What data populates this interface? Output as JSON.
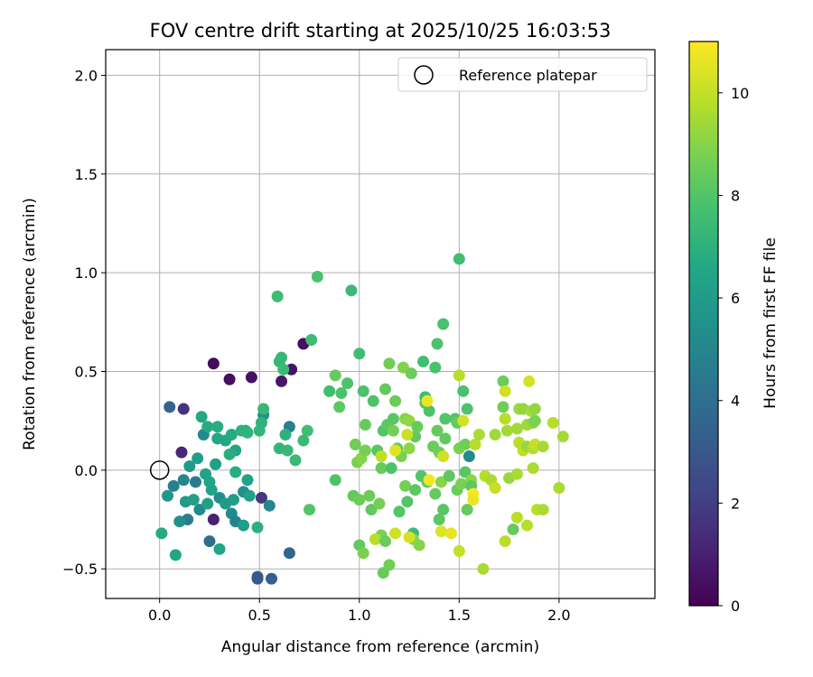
{
  "chart_data": {
    "type": "scatter",
    "title": "FOV centre drift starting at 2025/10/25 16:03:53",
    "xlabel": "Angular distance from reference (arcmin)",
    "ylabel": "Rotation from reference (arcmin)",
    "xlim": [
      -0.27,
      2.48
    ],
    "ylim": [
      -0.65,
      2.13
    ],
    "xticks": [
      0.0,
      0.5,
      1.0,
      1.5,
      2.0
    ],
    "xtick_labels": [
      "0.0",
      "0.5",
      "1.0",
      "1.5",
      "2.0"
    ],
    "yticks": [
      -0.5,
      0.0,
      0.5,
      1.0,
      1.5,
      2.0
    ],
    "ytick_labels": [
      "−0.5",
      "0.0",
      "0.5",
      "1.0",
      "1.5",
      "2.0"
    ],
    "grid": true,
    "legend": {
      "position": "top-right",
      "label": "Reference platepar"
    },
    "reference_point": {
      "x": 0.0,
      "y": 0.0
    },
    "colorbar": {
      "label": "Hours from first FF file",
      "range": [
        0,
        11
      ],
      "ticks": [
        0,
        2,
        4,
        6,
        8,
        10
      ],
      "tick_labels": [
        "0",
        "2",
        "4",
        "6",
        "8",
        "10"
      ],
      "colormap": "viridis"
    },
    "points": [
      {
        "x": 0.27,
        "y": 0.54,
        "hours": 0.3
      },
      {
        "x": 0.35,
        "y": 0.46,
        "hours": 0.4
      },
      {
        "x": 0.46,
        "y": 0.47,
        "hours": 0.5
      },
      {
        "x": 0.66,
        "y": 0.51,
        "hours": 0.6
      },
      {
        "x": 0.72,
        "y": 0.64,
        "hours": 0.4
      },
      {
        "x": 0.61,
        "y": 0.45,
        "hours": 0.7
      },
      {
        "x": 0.12,
        "y": 0.31,
        "hours": 1.6
      },
      {
        "x": 0.11,
        "y": 0.09,
        "hours": 1.2
      },
      {
        "x": 0.27,
        "y": -0.25,
        "hours": 1.0
      },
      {
        "x": 0.51,
        "y": -0.14,
        "hours": 1.8
      },
      {
        "x": 0.05,
        "y": 0.32,
        "hours": 3.5
      },
      {
        "x": 0.25,
        "y": -0.36,
        "hours": 4.0
      },
      {
        "x": 0.49,
        "y": -0.54,
        "hours": 3.2
      },
      {
        "x": 0.56,
        "y": -0.55,
        "hours": 3.4
      },
      {
        "x": 0.65,
        "y": -0.42,
        "hours": 3.6
      },
      {
        "x": 0.49,
        "y": -0.55,
        "hours": 3.0
      },
      {
        "x": 0.07,
        "y": -0.08,
        "hours": 4.8
      },
      {
        "x": 0.12,
        "y": -0.05,
        "hours": 5.0
      },
      {
        "x": 0.18,
        "y": -0.06,
        "hours": 4.5
      },
      {
        "x": 0.14,
        "y": -0.25,
        "hours": 4.6
      },
      {
        "x": 0.3,
        "y": -0.14,
        "hours": 5.3
      },
      {
        "x": 0.36,
        "y": -0.22,
        "hours": 5.2
      },
      {
        "x": 0.42,
        "y": -0.11,
        "hours": 5.4
      },
      {
        "x": 0.55,
        "y": -0.18,
        "hours": 5.0
      },
      {
        "x": 0.65,
        "y": 0.22,
        "hours": 4.7
      },
      {
        "x": 0.52,
        "y": 0.28,
        "hours": 5.5
      },
      {
        "x": 0.2,
        "y": -0.2,
        "hours": 5.2
      },
      {
        "x": 0.38,
        "y": -0.26,
        "hours": 4.9
      },
      {
        "x": 0.22,
        "y": 0.18,
        "hours": 5.1
      },
      {
        "x": 0.1,
        "y": -0.26,
        "hours": 5.4
      },
      {
        "x": 0.04,
        "y": -0.13,
        "hours": 5.8
      },
      {
        "x": 0.13,
        "y": -0.16,
        "hours": 6.0
      },
      {
        "x": 0.17,
        "y": -0.15,
        "hours": 6.2
      },
      {
        "x": 0.15,
        "y": 0.02,
        "hours": 6.0
      },
      {
        "x": 0.19,
        "y": 0.06,
        "hours": 6.1
      },
      {
        "x": 0.23,
        "y": -0.02,
        "hours": 6.3
      },
      {
        "x": 0.25,
        "y": -0.06,
        "hours": 6.4
      },
      {
        "x": 0.28,
        "y": 0.03,
        "hours": 6.2
      },
      {
        "x": 0.29,
        "y": 0.16,
        "hours": 6.5
      },
      {
        "x": 0.33,
        "y": 0.15,
        "hours": 6.6
      },
      {
        "x": 0.37,
        "y": -0.15,
        "hours": 6.1
      },
      {
        "x": 0.33,
        "y": -0.17,
        "hours": 6.0
      },
      {
        "x": 0.26,
        "y": -0.1,
        "hours": 6.3
      },
      {
        "x": 0.24,
        "y": -0.17,
        "hours": 6.2
      },
      {
        "x": 0.21,
        "y": 0.27,
        "hours": 6.6
      },
      {
        "x": 0.24,
        "y": 0.22,
        "hours": 6.7
      },
      {
        "x": 0.29,
        "y": 0.22,
        "hours": 6.8
      },
      {
        "x": 0.36,
        "y": 0.18,
        "hours": 6.7
      },
      {
        "x": 0.38,
        "y": 0.1,
        "hours": 6.4
      },
      {
        "x": 0.43,
        "y": 0.2,
        "hours": 6.6
      },
      {
        "x": 0.44,
        "y": -0.05,
        "hours": 6.3
      },
      {
        "x": 0.45,
        "y": -0.13,
        "hours": 6.2
      },
      {
        "x": 0.42,
        "y": -0.28,
        "hours": 6.1
      },
      {
        "x": 0.3,
        "y": -0.4,
        "hours": 6.5
      },
      {
        "x": 0.08,
        "y": -0.43,
        "hours": 6.6
      },
      {
        "x": 0.01,
        "y": -0.32,
        "hours": 6.7
      },
      {
        "x": 0.35,
        "y": 0.08,
        "hours": 6.9
      },
      {
        "x": 0.41,
        "y": 0.2,
        "hours": 7.0
      },
      {
        "x": 0.44,
        "y": 0.19,
        "hours": 7.1
      },
      {
        "x": 0.49,
        "y": -0.29,
        "hours": 7.0
      },
      {
        "x": 0.38,
        "y": -0.01,
        "hours": 6.8
      },
      {
        "x": 0.5,
        "y": 0.2,
        "hours": 7.2
      },
      {
        "x": 0.51,
        "y": 0.24,
        "hours": 7.1
      },
      {
        "x": 0.52,
        "y": 0.31,
        "hours": 7.3
      },
      {
        "x": 0.6,
        "y": 0.55,
        "hours": 7.2
      },
      {
        "x": 0.62,
        "y": 0.51,
        "hours": 7.4
      },
      {
        "x": 0.61,
        "y": 0.57,
        "hours": 7.3
      },
      {
        "x": 0.63,
        "y": 0.18,
        "hours": 7.0
      },
      {
        "x": 0.6,
        "y": 0.11,
        "hours": 7.2
      },
      {
        "x": 0.64,
        "y": 0.1,
        "hours": 7.3
      },
      {
        "x": 0.68,
        "y": 0.05,
        "hours": 7.4
      },
      {
        "x": 0.72,
        "y": 0.15,
        "hours": 7.4
      },
      {
        "x": 0.74,
        "y": 0.2,
        "hours": 7.6
      },
      {
        "x": 0.76,
        "y": 0.66,
        "hours": 7.5
      },
      {
        "x": 0.59,
        "y": 0.88,
        "hours": 7.5
      },
      {
        "x": 0.79,
        "y": 0.98,
        "hours": 7.8
      },
      {
        "x": 0.96,
        "y": 0.91,
        "hours": 7.4
      },
      {
        "x": 0.75,
        "y": -0.2,
        "hours": 8.0
      },
      {
        "x": 0.85,
        "y": 0.4,
        "hours": 7.6
      },
      {
        "x": 0.88,
        "y": -0.05,
        "hours": 7.9
      },
      {
        "x": 0.88,
        "y": 0.48,
        "hours": 8.4
      },
      {
        "x": 0.9,
        "y": 0.32,
        "hours": 8.2
      },
      {
        "x": 0.91,
        "y": 0.39,
        "hours": 7.8
      },
      {
        "x": 0.94,
        "y": 0.44,
        "hours": 7.9
      },
      {
        "x": 0.97,
        "y": -0.13,
        "hours": 8.3
      },
      {
        "x": 0.98,
        "y": 0.13,
        "hours": 8.6
      },
      {
        "x": 0.99,
        "y": 0.04,
        "hours": 8.8
      },
      {
        "x": 1.0,
        "y": -0.15,
        "hours": 8.5
      },
      {
        "x": 1.01,
        "y": 0.06,
        "hours": 9.0
      },
      {
        "x": 1.0,
        "y": 0.59,
        "hours": 7.6
      },
      {
        "x": 1.02,
        "y": 0.4,
        "hours": 7.8
      },
      {
        "x": 1.03,
        "y": 0.23,
        "hours": 8.4
      },
      {
        "x": 1.03,
        "y": 0.1,
        "hours": 8.7
      },
      {
        "x": 1.05,
        "y": -0.13,
        "hours": 8.5
      },
      {
        "x": 1.06,
        "y": -0.2,
        "hours": 8.3
      },
      {
        "x": 1.07,
        "y": 0.35,
        "hours": 7.9
      },
      {
        "x": 1.09,
        "y": 0.1,
        "hours": 8.1
      },
      {
        "x": 1.1,
        "y": -0.17,
        "hours": 8.7
      },
      {
        "x": 1.11,
        "y": 0.01,
        "hours": 8.4
      },
      {
        "x": 1.11,
        "y": -0.33,
        "hours": 8.8
      },
      {
        "x": 1.12,
        "y": 0.2,
        "hours": 8.0
      },
      {
        "x": 1.13,
        "y": 0.41,
        "hours": 8.3
      },
      {
        "x": 1.14,
        "y": 0.23,
        "hours": 8.2
      },
      {
        "x": 1.15,
        "y": 0.54,
        "hours": 8.6
      },
      {
        "x": 1.16,
        "y": 0.01,
        "hours": 7.9
      },
      {
        "x": 1.17,
        "y": 0.26,
        "hours": 8.1
      },
      {
        "x": 1.17,
        "y": 0.2,
        "hours": 8.7
      },
      {
        "x": 1.18,
        "y": 0.35,
        "hours": 8.5
      },
      {
        "x": 1.19,
        "y": 0.11,
        "hours": 8.3
      },
      {
        "x": 1.2,
        "y": -0.21,
        "hours": 8.0
      },
      {
        "x": 1.21,
        "y": 0.07,
        "hours": 8.8
      },
      {
        "x": 1.22,
        "y": 0.52,
        "hours": 8.9
      },
      {
        "x": 1.23,
        "y": 0.26,
        "hours": 9.0
      },
      {
        "x": 1.23,
        "y": -0.08,
        "hours": 8.7
      },
      {
        "x": 1.24,
        "y": -0.16,
        "hours": 8.0
      },
      {
        "x": 1.25,
        "y": 0.25,
        "hours": 9.2
      },
      {
        "x": 1.25,
        "y": 0.11,
        "hours": 9.1
      },
      {
        "x": 1.26,
        "y": 0.49,
        "hours": 8.5
      },
      {
        "x": 1.27,
        "y": -0.32,
        "hours": 7.4
      },
      {
        "x": 1.27,
        "y": -0.35,
        "hours": 9.0
      },
      {
        "x": 1.28,
        "y": 0.17,
        "hours": 8.3
      },
      {
        "x": 1.28,
        "y": -0.1,
        "hours": 8.2
      },
      {
        "x": 1.29,
        "y": 0.22,
        "hours": 8.4
      },
      {
        "x": 1.31,
        "y": -0.03,
        "hours": 8.0
      },
      {
        "x": 1.32,
        "y": 0.55,
        "hours": 7.6
      },
      {
        "x": 1.33,
        "y": 0.34,
        "hours": 8.0
      },
      {
        "x": 1.33,
        "y": 0.37,
        "hours": 7.5
      },
      {
        "x": 1.34,
        "y": -0.06,
        "hours": 8.2
      },
      {
        "x": 1.35,
        "y": 0.3,
        "hours": 7.9
      },
      {
        "x": 1.37,
        "y": 0.12,
        "hours": 8.5
      },
      {
        "x": 1.38,
        "y": 0.52,
        "hours": 7.8
      },
      {
        "x": 1.38,
        "y": -0.12,
        "hours": 8.4
      },
      {
        "x": 1.39,
        "y": 0.64,
        "hours": 7.9
      },
      {
        "x": 1.39,
        "y": 0.2,
        "hours": 8.4
      },
      {
        "x": 1.4,
        "y": -0.25,
        "hours": 8.2
      },
      {
        "x": 1.4,
        "y": 0.09,
        "hours": 8.6
      },
      {
        "x": 1.41,
        "y": -0.06,
        "hours": 9.0
      },
      {
        "x": 1.42,
        "y": 0.74,
        "hours": 7.8
      },
      {
        "x": 1.42,
        "y": -0.2,
        "hours": 8.1
      },
      {
        "x": 1.43,
        "y": 0.16,
        "hours": 8.3
      },
      {
        "x": 1.45,
        "y": -0.03,
        "hours": 8.2
      },
      {
        "x": 1.48,
        "y": 0.26,
        "hours": 8.0
      },
      {
        "x": 1.49,
        "y": 0.24,
        "hours": 8.4
      },
      {
        "x": 1.49,
        "y": -0.1,
        "hours": 8.5
      },
      {
        "x": 1.5,
        "y": 1.07,
        "hours": 7.6
      },
      {
        "x": 1.5,
        "y": 0.11,
        "hours": 8.8
      },
      {
        "x": 1.51,
        "y": -0.07,
        "hours": 8.8
      },
      {
        "x": 1.52,
        "y": 0.4,
        "hours": 7.8
      },
      {
        "x": 1.53,
        "y": -0.01,
        "hours": 8.1
      },
      {
        "x": 1.53,
        "y": 0.13,
        "hours": 8.6
      },
      {
        "x": 1.54,
        "y": 0.31,
        "hours": 7.9
      },
      {
        "x": 1.54,
        "y": -0.2,
        "hours": 8.4
      },
      {
        "x": 1.55,
        "y": 0.07,
        "hours": 5.2
      },
      {
        "x": 1.56,
        "y": -0.05,
        "hours": 9.1
      },
      {
        "x": 1.56,
        "y": -0.08,
        "hours": 8.2
      },
      {
        "x": 1.43,
        "y": 0.26,
        "hours": 8.0
      },
      {
        "x": 1.12,
        "y": -0.52,
        "hours": 8.4
      },
      {
        "x": 1.15,
        "y": -0.48,
        "hours": 8.6
      },
      {
        "x": 1.08,
        "y": -0.35,
        "hours": 9.8
      },
      {
        "x": 1.11,
        "y": 0.07,
        "hours": 9.9
      },
      {
        "x": 1.13,
        "y": -0.36,
        "hours": 8.5
      },
      {
        "x": 1.0,
        "y": -0.38,
        "hours": 8.3
      },
      {
        "x": 1.02,
        "y": -0.42,
        "hours": 8.8
      },
      {
        "x": 1.18,
        "y": -0.32,
        "hours": 10.2
      },
      {
        "x": 1.18,
        "y": 0.1,
        "hours": 10.5
      },
      {
        "x": 1.24,
        "y": 0.18,
        "hours": 10.1
      },
      {
        "x": 1.25,
        "y": -0.34,
        "hours": 10.3
      },
      {
        "x": 1.3,
        "y": -0.38,
        "hours": 9.0
      },
      {
        "x": 1.35,
        "y": -0.05,
        "hours": 10.8
      },
      {
        "x": 1.34,
        "y": 0.35,
        "hours": 10.7
      },
      {
        "x": 1.41,
        "y": -0.31,
        "hours": 10.4
      },
      {
        "x": 1.42,
        "y": 0.07,
        "hours": 10.2
      },
      {
        "x": 1.46,
        "y": -0.32,
        "hours": 10.6
      },
      {
        "x": 1.5,
        "y": 0.48,
        "hours": 9.8
      },
      {
        "x": 1.5,
        "y": -0.41,
        "hours": 10.0
      },
      {
        "x": 1.52,
        "y": 0.25,
        "hours": 10.3
      },
      {
        "x": 1.57,
        "y": -0.12,
        "hours": 10.9
      },
      {
        "x": 1.57,
        "y": -0.15,
        "hours": 10.7
      },
      {
        "x": 1.58,
        "y": 0.13,
        "hours": 9.8
      },
      {
        "x": 1.6,
        "y": 0.18,
        "hours": 9.6
      },
      {
        "x": 1.62,
        "y": -0.5,
        "hours": 9.6
      },
      {
        "x": 1.63,
        "y": -0.03,
        "hours": 9.8
      },
      {
        "x": 1.66,
        "y": -0.05,
        "hours": 9.6
      },
      {
        "x": 1.68,
        "y": 0.18,
        "hours": 9.4
      },
      {
        "x": 1.68,
        "y": -0.09,
        "hours": 10.1
      },
      {
        "x": 1.72,
        "y": 0.45,
        "hours": 8.5
      },
      {
        "x": 1.72,
        "y": 0.32,
        "hours": 8.6
      },
      {
        "x": 1.73,
        "y": 0.4,
        "hours": 10.2
      },
      {
        "x": 1.73,
        "y": 0.26,
        "hours": 9.8
      },
      {
        "x": 1.73,
        "y": -0.36,
        "hours": 9.8
      },
      {
        "x": 1.74,
        "y": 0.2,
        "hours": 9.5
      },
      {
        "x": 1.75,
        "y": -0.04,
        "hours": 9.3
      },
      {
        "x": 1.77,
        "y": -0.3,
        "hours": 8.4
      },
      {
        "x": 1.79,
        "y": 0.21,
        "hours": 9.4
      },
      {
        "x": 1.79,
        "y": -0.24,
        "hours": 9.8
      },
      {
        "x": 1.79,
        "y": -0.02,
        "hours": 9.6
      },
      {
        "x": 1.8,
        "y": 0.14,
        "hours": 9.8
      },
      {
        "x": 1.8,
        "y": 0.31,
        "hours": 9.4
      },
      {
        "x": 1.82,
        "y": 0.31,
        "hours": 9.2
      },
      {
        "x": 1.82,
        "y": 0.1,
        "hours": 9.9
      },
      {
        "x": 1.84,
        "y": 0.23,
        "hours": 9.4
      },
      {
        "x": 1.84,
        "y": 0.12,
        "hours": 9.3
      },
      {
        "x": 1.84,
        "y": -0.28,
        "hours": 9.8
      },
      {
        "x": 1.85,
        "y": 0.45,
        "hours": 10.3
      },
      {
        "x": 1.86,
        "y": 0.3,
        "hours": 9.5
      },
      {
        "x": 1.87,
        "y": 0.24,
        "hours": 9.0
      },
      {
        "x": 1.87,
        "y": 0.11,
        "hours": 9.7
      },
      {
        "x": 1.87,
        "y": 0.01,
        "hours": 9.6
      },
      {
        "x": 1.88,
        "y": 0.13,
        "hours": 10.0
      },
      {
        "x": 1.88,
        "y": 0.31,
        "hours": 9.2
      },
      {
        "x": 1.88,
        "y": 0.25,
        "hours": 8.8
      },
      {
        "x": 1.89,
        "y": -0.2,
        "hours": 9.8
      },
      {
        "x": 1.92,
        "y": -0.2,
        "hours": 9.6
      },
      {
        "x": 1.92,
        "y": 0.12,
        "hours": 9.5
      },
      {
        "x": 1.97,
        "y": 0.24,
        "hours": 9.8
      },
      {
        "x": 2.0,
        "y": -0.09,
        "hours": 9.6
      },
      {
        "x": 2.02,
        "y": 0.17,
        "hours": 9.5
      }
    ]
  }
}
